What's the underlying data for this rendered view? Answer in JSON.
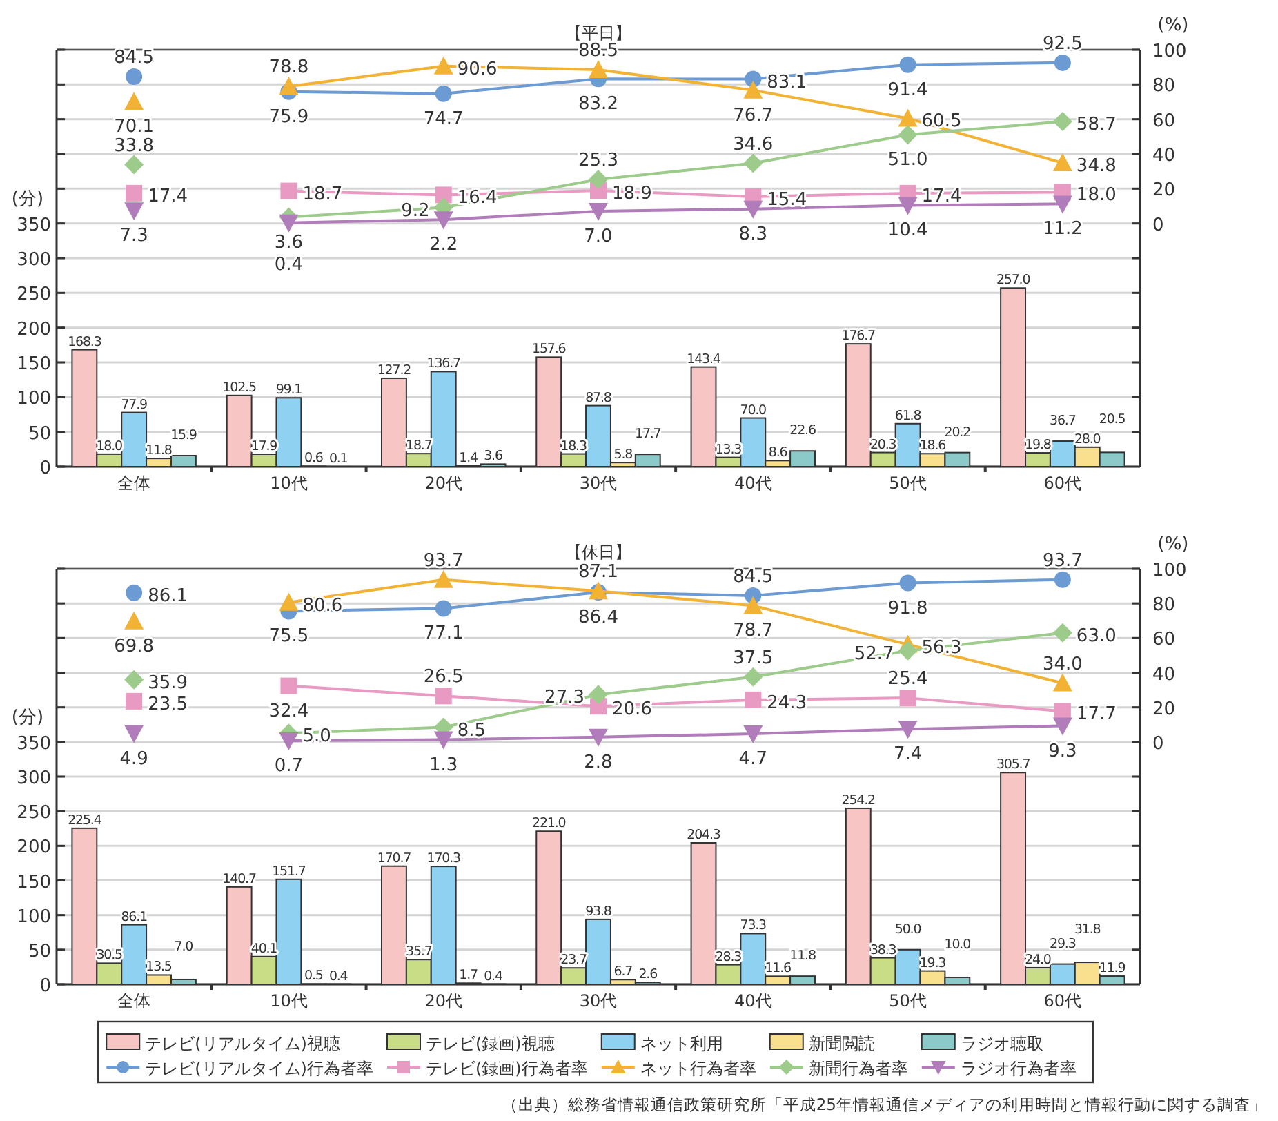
{
  "chart_data": [
    {
      "type": "bar",
      "title": "【平日】",
      "ylabel": "(分)",
      "y2label": "(%)",
      "categories": [
        "全体",
        "10代",
        "20代",
        "30代",
        "40代",
        "50代",
        "60代"
      ],
      "ylim": [
        0,
        600
      ],
      "yticks": [
        0,
        50,
        100,
        150,
        200,
        250,
        300,
        350,
        {
          "value": 400,
          "label": null
        },
        {
          "value": 450,
          "label": null
        },
        {
          "value": 500,
          "label": null
        },
        {
          "value": 550,
          "label": null
        },
        {
          "value": 600,
          "label": null
        }
      ],
      "y2lim": [
        -140,
        100
      ],
      "y2ticks": [
        {
          "value": -120,
          "label": null
        },
        {
          "value": -100,
          "label": null
        },
        {
          "value": -80,
          "label": null
        },
        {
          "value": -60,
          "label": null
        },
        {
          "value": -40,
          "label": null
        },
        {
          "value": -20,
          "label": null
        },
        0,
        20,
        40,
        60,
        80,
        100
      ],
      "grid": "y",
      "series": [
        {
          "type": "bar",
          "color": "#f7c6c4",
          "values": [
            168.3,
            102.5,
            127.2,
            157.6,
            143.4,
            176.7,
            257.0
          ],
          "value_labels": [
            "168.3",
            "102.5",
            "127.2",
            "157.6",
            "143.4",
            "176.7",
            "257.0"
          ]
        },
        {
          "type": "bar",
          "color": "#c9dd86",
          "values": [
            18.0,
            17.9,
            18.7,
            18.3,
            13.3,
            20.3,
            19.8
          ],
          "value_labels": [
            "18.0",
            "17.9",
            "18.7",
            "18.3",
            "13.3",
            "20.3",
            "19.8"
          ]
        },
        {
          "type": "bar",
          "color": "#8fd1f0",
          "values": [
            77.9,
            99.1,
            136.7,
            87.8,
            70.0,
            61.8,
            36.7
          ],
          "value_labels": [
            "77.9",
            "99.1",
            "136.7",
            "87.8",
            "70.0",
            "61.8",
            "36.7"
          ]
        },
        {
          "type": "bar",
          "color": "#f9e08f",
          "values": [
            11.8,
            0.6,
            1.4,
            5.8,
            8.6,
            18.6,
            28.0
          ],
          "value_labels": [
            "11.8",
            "0.6",
            "1.4",
            "5.8",
            "8.6",
            "18.6",
            "28.0"
          ]
        },
        {
          "type": "bar",
          "color": "#8ccaca",
          "values": [
            15.9,
            0.1,
            3.6,
            17.7,
            22.6,
            20.2,
            20.5
          ],
          "value_labels": [
            "15.9",
            "0.1",
            "3.6",
            "17.7",
            "22.6",
            "20.2",
            "20.5"
          ]
        },
        {
          "type": "line",
          "axis": "y2",
          "marker": "circle",
          "color": "#6b9bd2",
          "values": [
            null,
            75.9,
            74.7,
            83.2,
            83.1,
            91.4,
            92.5
          ],
          "value_labels": [
            null,
            "75.9",
            "74.7",
            "83.2",
            "83.1",
            "91.4",
            "92.5"
          ]
        },
        {
          "type": "line",
          "axis": "y2",
          "marker": "square",
          "color": "#e99ac2",
          "values": [
            null,
            18.7,
            16.4,
            18.9,
            15.4,
            17.4,
            18.0
          ],
          "value_labels": [
            null,
            "18.7",
            "16.4",
            "18.9",
            "15.4",
            "17.4",
            "18.0"
          ]
        },
        {
          "type": "line",
          "axis": "y2",
          "marker": "triangle",
          "color": "#f2b234",
          "values": [
            null,
            78.8,
            90.6,
            88.5,
            76.7,
            60.5,
            34.8
          ],
          "value_labels": [
            null,
            "78.8",
            "90.6",
            "88.5",
            "76.7",
            "60.5",
            "34.8"
          ]
        },
        {
          "type": "line",
          "axis": "y2",
          "marker": "diamond",
          "color": "#9dcb8b",
          "values": [
            null,
            3.6,
            9.2,
            25.3,
            34.6,
            51.0,
            58.7
          ],
          "value_labels": [
            null,
            "3.6",
            "9.2",
            "25.3",
            "34.6",
            "51.0",
            "58.7"
          ]
        },
        {
          "type": "line",
          "axis": "y2",
          "marker": "triangle-down",
          "color": "#b07cb9",
          "values": [
            null,
            0.4,
            2.2,
            7.0,
            8.3,
            10.4,
            11.2
          ],
          "value_labels": [
            null,
            "0.4",
            "2.2",
            "7.0",
            "8.3",
            "10.4",
            "11.2"
          ]
        },
        {
          "type": "scatter",
          "axis": "y2",
          "marker": "circle",
          "color": "#6b9bd2",
          "values": [
            84.5,
            null,
            null,
            null,
            null,
            null,
            null
          ],
          "value_labels": [
            "84.5",
            null,
            null,
            null,
            null,
            null,
            null
          ]
        },
        {
          "type": "scatter",
          "axis": "y2",
          "marker": "square",
          "color": "#e99ac2",
          "values": [
            17.4,
            null,
            null,
            null,
            null,
            null,
            null
          ],
          "value_labels": [
            "17.4",
            null,
            null,
            null,
            null,
            null,
            null
          ]
        },
        {
          "type": "scatter",
          "axis": "y2",
          "marker": "triangle",
          "color": "#f2b234",
          "values": [
            70.1,
            null,
            null,
            null,
            null,
            null,
            null
          ],
          "value_labels": [
            "70.1",
            null,
            null,
            null,
            null,
            null,
            null
          ]
        },
        {
          "type": "scatter",
          "axis": "y2",
          "marker": "diamond",
          "color": "#9dcb8b",
          "values": [
            33.8,
            null,
            null,
            null,
            null,
            null,
            null
          ],
          "value_labels": [
            "33.8",
            null,
            null,
            null,
            null,
            null,
            null
          ]
        },
        {
          "type": "scatter",
          "axis": "y2",
          "marker": "triangle-down",
          "color": "#b07cb9",
          "values": [
            7.3,
            null,
            null,
            null,
            null,
            null,
            null
          ],
          "value_labels": [
            "7.3",
            null,
            null,
            null,
            null,
            null,
            null
          ]
        }
      ]
    },
    {
      "type": "bar",
      "title": "【休日】",
      "ylabel": "(分)",
      "y2label": "(%)",
      "categories": [
        "全体",
        "10代",
        "20代",
        "30代",
        "40代",
        "50代",
        "60代"
      ],
      "ylim": [
        0,
        600
      ],
      "yticks": [
        0,
        50,
        100,
        150,
        200,
        250,
        300,
        350,
        {
          "value": 400,
          "label": null
        },
        {
          "value": 450,
          "label": null
        },
        {
          "value": 500,
          "label": null
        },
        {
          "value": 550,
          "label": null
        },
        {
          "value": 600,
          "label": null
        }
      ],
      "y2lim": [
        -140,
        100
      ],
      "y2ticks": [
        {
          "value": -120,
          "label": null
        },
        {
          "value": -100,
          "label": null
        },
        {
          "value": -80,
          "label": null
        },
        {
          "value": -60,
          "label": null
        },
        {
          "value": -40,
          "label": null
        },
        {
          "value": -20,
          "label": null
        },
        0,
        20,
        40,
        60,
        80,
        100
      ],
      "grid": "y",
      "legend": "bottom",
      "annotations": [
        "（出典）総務省情報通信政策研究所「平成25年情報通信メディアの利用時間と情報行動に関する調査」"
      ],
      "series": [
        {
          "name": "テレビ(リアルタイム)視聴",
          "type": "bar",
          "color": "#f7c6c4",
          "values": [
            225.4,
            140.7,
            170.7,
            221.0,
            204.3,
            254.2,
            305.7
          ],
          "value_labels": [
            "225.4",
            "140.7",
            "170.7",
            "221.0",
            "204.3",
            "254.2",
            "305.7"
          ]
        },
        {
          "name": "テレビ(録画)視聴",
          "type": "bar",
          "color": "#c9dd86",
          "values": [
            30.5,
            40.1,
            35.7,
            23.7,
            28.3,
            38.3,
            24.0
          ],
          "value_labels": [
            "30.5",
            "40.1",
            "35.7",
            "23.7",
            "28.3",
            "38.3",
            "24.0"
          ]
        },
        {
          "name": "ネット利用",
          "type": "bar",
          "color": "#8fd1f0",
          "values": [
            86.1,
            151.7,
            170.3,
            93.8,
            73.3,
            50.0,
            29.3
          ],
          "value_labels": [
            "86.1",
            "151.7",
            "170.3",
            "93.8",
            "73.3",
            "50.0",
            "29.3"
          ]
        },
        {
          "name": "新聞閲読",
          "type": "bar",
          "color": "#f9e08f",
          "values": [
            13.5,
            0.5,
            1.7,
            6.7,
            11.6,
            19.3,
            31.8
          ],
          "value_labels": [
            "13.5",
            "0.5",
            "1.7",
            "6.7",
            "11.6",
            "19.3",
            "31.8"
          ]
        },
        {
          "name": "ラジオ聴取",
          "type": "bar",
          "color": "#8ccaca",
          "values": [
            7.0,
            0.4,
            0.4,
            2.6,
            11.8,
            10.0,
            11.9
          ],
          "value_labels": [
            "7.0",
            "0.4",
            "0.4",
            "2.6",
            "11.8",
            "10.0",
            "11.9"
          ]
        },
        {
          "name": "テレビ(リアルタイム)行為者率",
          "type": "line",
          "axis": "y2",
          "marker": "circle",
          "color": "#6b9bd2",
          "values": [
            null,
            75.5,
            77.1,
            86.4,
            84.5,
            91.8,
            93.7
          ],
          "value_labels": [
            null,
            "75.5",
            "77.1",
            "86.4",
            "84.5",
            "91.8",
            "93.7"
          ]
        },
        {
          "name": "テレビ(録画)行為者率",
          "type": "line",
          "axis": "y2",
          "marker": "square",
          "color": "#e99ac2",
          "values": [
            null,
            32.4,
            26.5,
            20.6,
            24.3,
            25.4,
            17.7
          ],
          "value_labels": [
            null,
            "32.4",
            "26.5",
            "20.6",
            "24.3",
            "25.4",
            "17.7"
          ]
        },
        {
          "name": "ネット行為者率",
          "type": "line",
          "axis": "y2",
          "marker": "triangle",
          "color": "#f2b234",
          "values": [
            null,
            80.6,
            93.7,
            87.1,
            78.7,
            56.3,
            34.0
          ],
          "value_labels": [
            null,
            "80.6",
            "93.7",
            "87.1",
            "78.7",
            "56.3",
            "34.0"
          ]
        },
        {
          "name": "新聞行為者率",
          "type": "line",
          "axis": "y2",
          "marker": "diamond",
          "color": "#9dcb8b",
          "values": [
            null,
            5.0,
            8.5,
            27.3,
            37.5,
            52.7,
            63.0
          ],
          "value_labels": [
            null,
            "5.0",
            "8.5",
            "27.3",
            "37.5",
            "52.7",
            "63.0"
          ]
        },
        {
          "name": "ラジオ行為者率",
          "type": "line",
          "axis": "y2",
          "marker": "triangle-down",
          "color": "#b07cb9",
          "values": [
            null,
            0.7,
            1.3,
            2.8,
            4.7,
            7.4,
            9.3
          ],
          "value_labels": [
            null,
            "0.7",
            "1.3",
            "2.8",
            "4.7",
            "7.4",
            "9.3"
          ]
        },
        {
          "type": "scatter",
          "axis": "y2",
          "marker": "circle",
          "color": "#6b9bd2",
          "values": [
            86.1,
            null,
            null,
            null,
            null,
            null,
            null
          ],
          "value_labels": [
            "86.1",
            null,
            null,
            null,
            null,
            null,
            null
          ]
        },
        {
          "type": "scatter",
          "axis": "y2",
          "marker": "square",
          "color": "#e99ac2",
          "values": [
            23.5,
            null,
            null,
            null,
            null,
            null,
            null
          ],
          "value_labels": [
            "23.5",
            null,
            null,
            null,
            null,
            null,
            null
          ]
        },
        {
          "type": "scatter",
          "axis": "y2",
          "marker": "triangle",
          "color": "#f2b234",
          "values": [
            69.8,
            null,
            null,
            null,
            null,
            null,
            null
          ],
          "value_labels": [
            "69.8",
            null,
            null,
            null,
            null,
            null,
            null
          ]
        },
        {
          "type": "scatter",
          "axis": "y2",
          "marker": "diamond",
          "color": "#9dcb8b",
          "values": [
            35.9,
            null,
            null,
            null,
            null,
            null,
            null
          ],
          "value_labels": [
            "35.9",
            null,
            null,
            null,
            null,
            null,
            null
          ]
        },
        {
          "type": "scatter",
          "axis": "y2",
          "marker": "triangle-down",
          "color": "#b07cb9",
          "values": [
            4.9,
            null,
            null,
            null,
            null,
            null,
            null
          ],
          "value_labels": [
            "4.9",
            null,
            null,
            null,
            null,
            null,
            null
          ]
        }
      ]
    }
  ]
}
